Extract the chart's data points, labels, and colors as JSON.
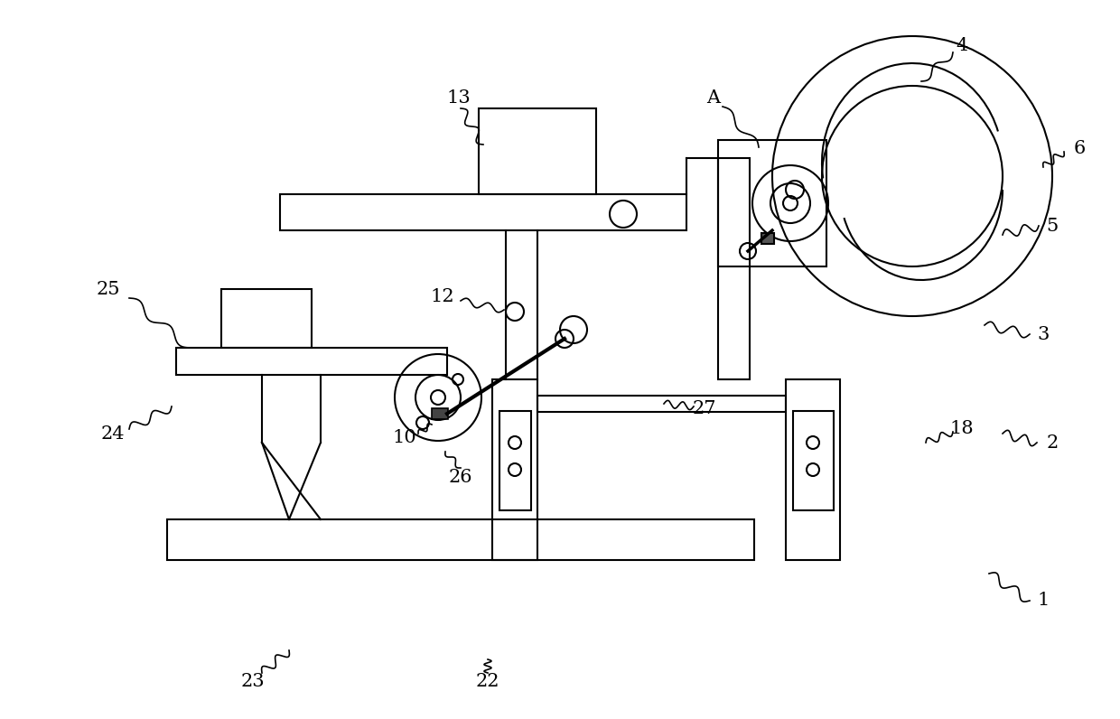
{
  "bg_color": "#ffffff",
  "line_color": "#000000",
  "fig_width": 12.4,
  "fig_height": 7.96,
  "dpi": 100
}
